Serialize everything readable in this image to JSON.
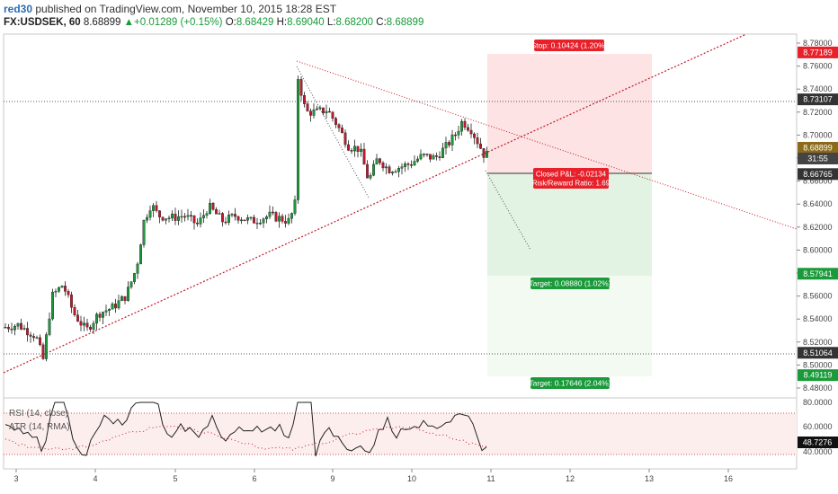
{
  "header": {
    "user": "red30",
    "published_text": "published on TradingView.com, November 10, 2015 18:28 EST",
    "symbol": "FX:USDSEK, 60",
    "last": "8.68899",
    "change": "+0.01289 (+0.15%)",
    "open_label": "O:",
    "open": "8.68429",
    "high_label": "H:",
    "high": "8.69040",
    "low_label": "L:",
    "low": "8.68200",
    "close_label": "C:",
    "close": "8.68899"
  },
  "price_axis": {
    "ticks": [
      "8.78000",
      "8.76000",
      "8.74000",
      "8.72000",
      "8.70000",
      "8.68000",
      "8.66000",
      "8.64000",
      "8.62000",
      "8.60000",
      "8.58000",
      "8.56000",
      "8.54000",
      "8.52000",
      "8.50000",
      "8.48000"
    ],
    "badges": [
      {
        "text": "8.77189",
        "color": "#e8202a"
      },
      {
        "text": "8.73107",
        "color": "#333333"
      },
      {
        "text": "8.68899",
        "color": "#8b6a1a"
      },
      {
        "text": "31:55",
        "color": "#444444"
      },
      {
        "text": "8.66765",
        "color": "#333333"
      },
      {
        "text": "8.57941",
        "color": "#1a9a3a"
      },
      {
        "text": "8.51064",
        "color": "#333333"
      },
      {
        "text": "8.49119",
        "color": "#1a9a3a"
      }
    ]
  },
  "time_axis": {
    "labels": [
      "3",
      "4",
      "5",
      "6",
      "9",
      "10",
      "11",
      "12",
      "13",
      "16"
    ]
  },
  "position_tool": {
    "stop_label": "Stop: 0.10424 (1.20%)",
    "closed_pnl": "Closed P&L: -0.02134",
    "risk_reward": "Risk/Reward Ratio: 1.69",
    "target1": "Target: 0.08880 (1.02%)",
    "target2": "Target: 0.17646 (2.04%)"
  },
  "indicators": {
    "rsi_label": "RSI (14, close)",
    "atr_label": "ATR (14, RMA)",
    "ticks": [
      "80.0000",
      "60.0000",
      "40.0000"
    ],
    "value": "48.7276"
  },
  "chart_data": {
    "type": "candlestick",
    "symbol": "FX:USDSEK",
    "interval": "60",
    "ylim": [
      8.47,
      8.795
    ],
    "horizontal_levels": [
      8.77189,
      8.73107,
      8.66765,
      8.57941,
      8.51064,
      8.49119
    ],
    "colors": {
      "up": "#1a9a3a",
      "down": "#c0182a",
      "trend": "#c0182a",
      "stop_zone": "#fde3e3",
      "target_zone": "#e3f3e3",
      "target_zone2": "#f2faf2"
    }
  }
}
